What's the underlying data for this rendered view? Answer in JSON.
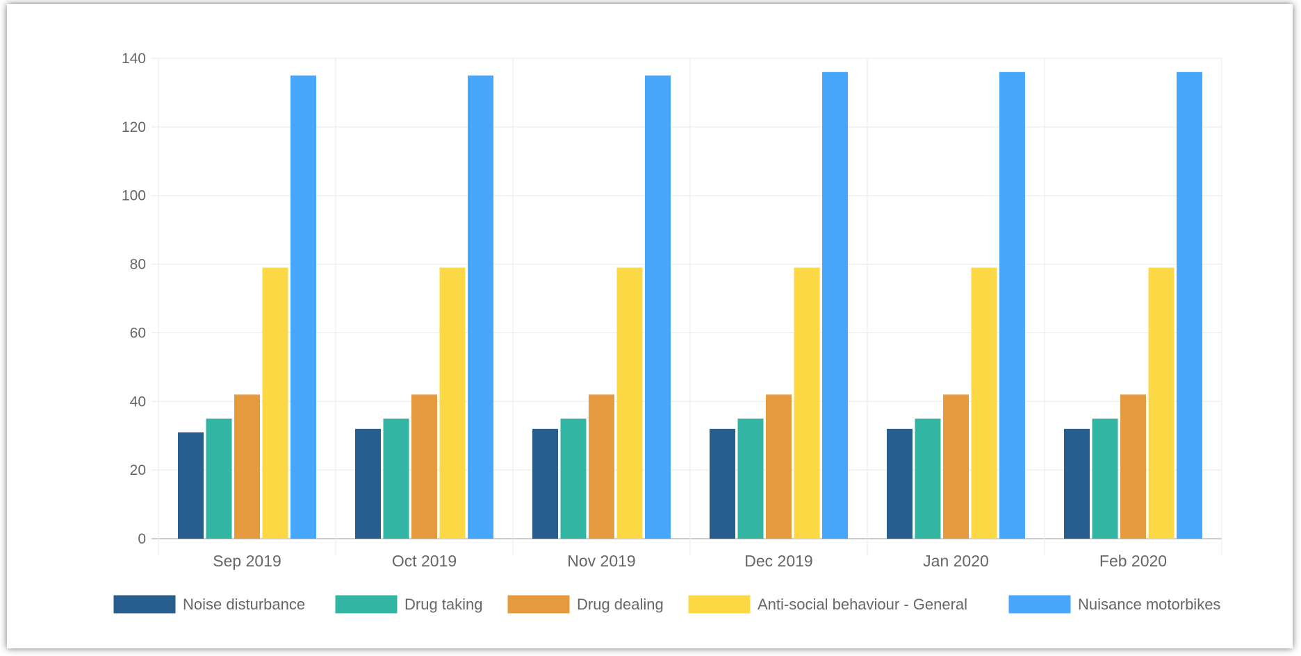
{
  "chart_data": {
    "type": "bar",
    "categories": [
      "Sep 2019",
      "Oct 2019",
      "Nov 2019",
      "Dec 2019",
      "Jan 2020",
      "Feb 2020"
    ],
    "series": [
      {
        "name": "Noise disturbance",
        "color": "#285e8e",
        "values": [
          31,
          32,
          32,
          32,
          32,
          32
        ]
      },
      {
        "name": "Drug taking",
        "color": "#33b5a4",
        "values": [
          35,
          35,
          35,
          35,
          35,
          35
        ]
      },
      {
        "name": "Drug dealing",
        "color": "#e59a3e",
        "values": [
          42,
          42,
          42,
          42,
          42,
          42
        ]
      },
      {
        "name": "Anti-social behaviour - General",
        "color": "#fcd844",
        "values": [
          79,
          79,
          79,
          79,
          79,
          79
        ]
      },
      {
        "name": "Nuisance motorbikes",
        "color": "#46a7fc",
        "values": [
          135,
          135,
          135,
          136,
          136,
          136
        ]
      }
    ],
    "yticks": [
      "0",
      "20",
      "40",
      "60",
      "80",
      "100",
      "120",
      "140"
    ],
    "ylim": [
      0,
      140
    ],
    "grid": true,
    "legend": "bottom"
  }
}
